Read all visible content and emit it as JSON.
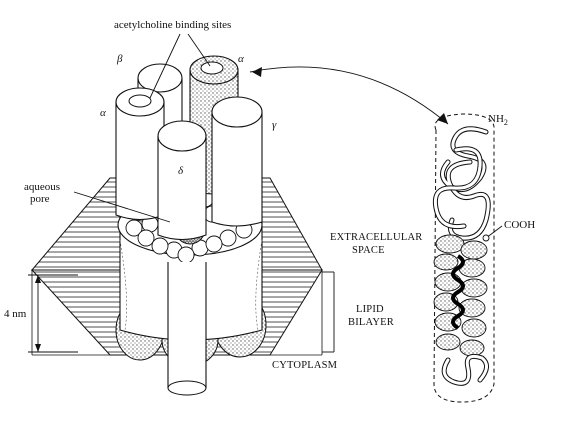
{
  "labels": {
    "binding_sites": "acetylcholine binding sites",
    "aqueous_pore_line1": "aqueous",
    "aqueous_pore_line2": "pore",
    "subunit_beta": "β",
    "subunit_alpha_top": "α",
    "subunit_alpha_left": "α",
    "subunit_gamma": "γ",
    "subunit_delta": "δ",
    "extracellular_line1": "EXTRACELLULAR",
    "extracellular_line2": "SPACE",
    "lipid_line1": "LIPID",
    "lipid_line2": "BILAYER",
    "cytoplasm": "CYTOPLASM",
    "thickness": "4 nm",
    "nh2": "NH",
    "nh2_sub": "2",
    "cooh": "COOH"
  },
  "colors": {
    "ink": "#111111",
    "paper": "#ffffff",
    "stipple": "#7a7a7a"
  }
}
